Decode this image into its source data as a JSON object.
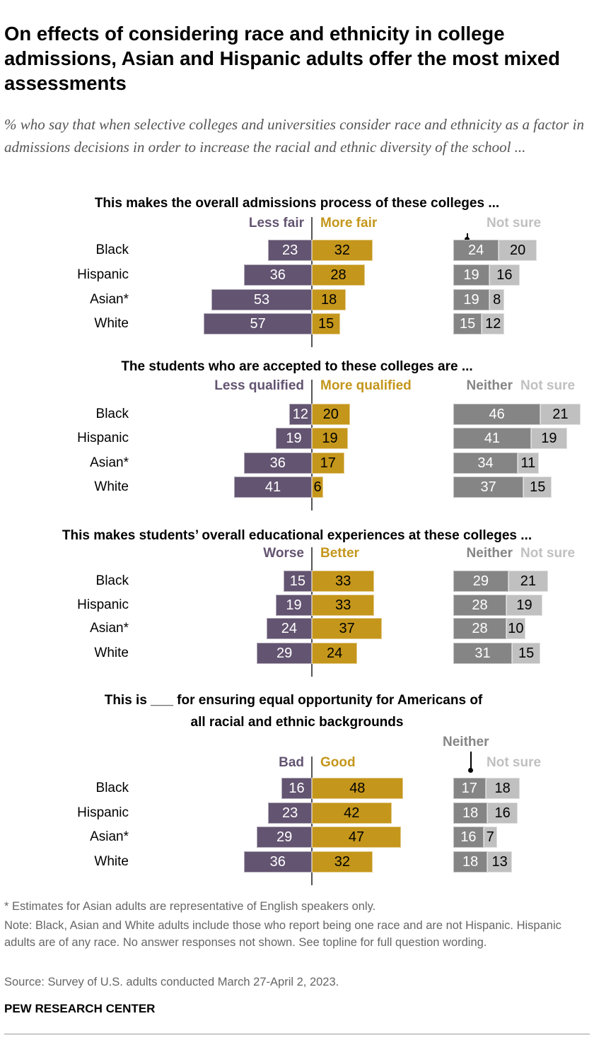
{
  "title": "On effects of considering race and ethnicity in college admissions, Asian and Hispanic adults offer the most mixed assessments",
  "subtitle": "% who say that when selective colleges and universities consider race and ethnicity as a factor in admissions decisions in order to increase the racial and ethnic diversity of the school ...",
  "colors": {
    "negative": "#635471",
    "positive": "#c4961b",
    "neither": "#858585",
    "not_sure": "#c0c0c0"
  },
  "chart_data": [
    {
      "type": "bar",
      "title": "This makes the overall admissions process of these colleges ...",
      "categories": [
        "Black",
        "Hispanic",
        "Asian*",
        "White"
      ],
      "series": [
        {
          "name": "Less fair",
          "values": [
            23,
            36,
            53,
            57
          ]
        },
        {
          "name": "More fair",
          "values": [
            32,
            28,
            18,
            15
          ]
        },
        {
          "name": "",
          "values": [
            24,
            19,
            19,
            15
          ]
        },
        {
          "name": "Not sure",
          "values": [
            20,
            16,
            8,
            12
          ]
        }
      ]
    },
    {
      "type": "bar",
      "title": "The students who are accepted to these colleges are ...",
      "categories": [
        "Black",
        "Hispanic",
        "Asian*",
        "White"
      ],
      "series": [
        {
          "name": "Less qualified",
          "values": [
            12,
            19,
            36,
            41
          ]
        },
        {
          "name": "More qualified",
          "values": [
            20,
            19,
            17,
            6
          ]
        },
        {
          "name": "Neither",
          "values": [
            46,
            41,
            34,
            37
          ]
        },
        {
          "name": "Not sure",
          "values": [
            21,
            19,
            11,
            15
          ]
        }
      ]
    },
    {
      "type": "bar",
      "title": "This makes students’ overall educational experiences at these colleges ...",
      "categories": [
        "Black",
        "Hispanic",
        "Asian*",
        "White"
      ],
      "series": [
        {
          "name": "Worse",
          "values": [
            15,
            19,
            24,
            29
          ]
        },
        {
          "name": "Better",
          "values": [
            33,
            33,
            37,
            24
          ]
        },
        {
          "name": "Neither",
          "values": [
            29,
            28,
            28,
            31
          ]
        },
        {
          "name": "Not sure",
          "values": [
            21,
            19,
            10,
            15
          ]
        }
      ]
    },
    {
      "type": "bar",
      "title": "This is ___ for ensuring equal opportunity for Americans of all racial and ethnic backgrounds",
      "categories": [
        "Black",
        "Hispanic",
        "Asian*",
        "White"
      ],
      "series": [
        {
          "name": "Bad",
          "values": [
            16,
            23,
            29,
            36
          ]
        },
        {
          "name": "Good",
          "values": [
            48,
            42,
            47,
            32
          ]
        },
        {
          "name": "Neither",
          "values": [
            17,
            18,
            16,
            18
          ]
        },
        {
          "name": "Not sure",
          "values": [
            18,
            16,
            7,
            13
          ]
        }
      ]
    }
  ],
  "notes": {
    "asterisk": "* Estimates for Asian adults are representative of English speakers only.",
    "note": "Note: Black, Asian and White adults include those who report being one race and are not Hispanic. Hispanic adults are of any race. No answer responses not shown. See topline for full question wording.",
    "source": "Source: Survey of U.S. adults conducted March 27-April 2, 2023."
  },
  "brand": "PEW RESEARCH CENTER"
}
